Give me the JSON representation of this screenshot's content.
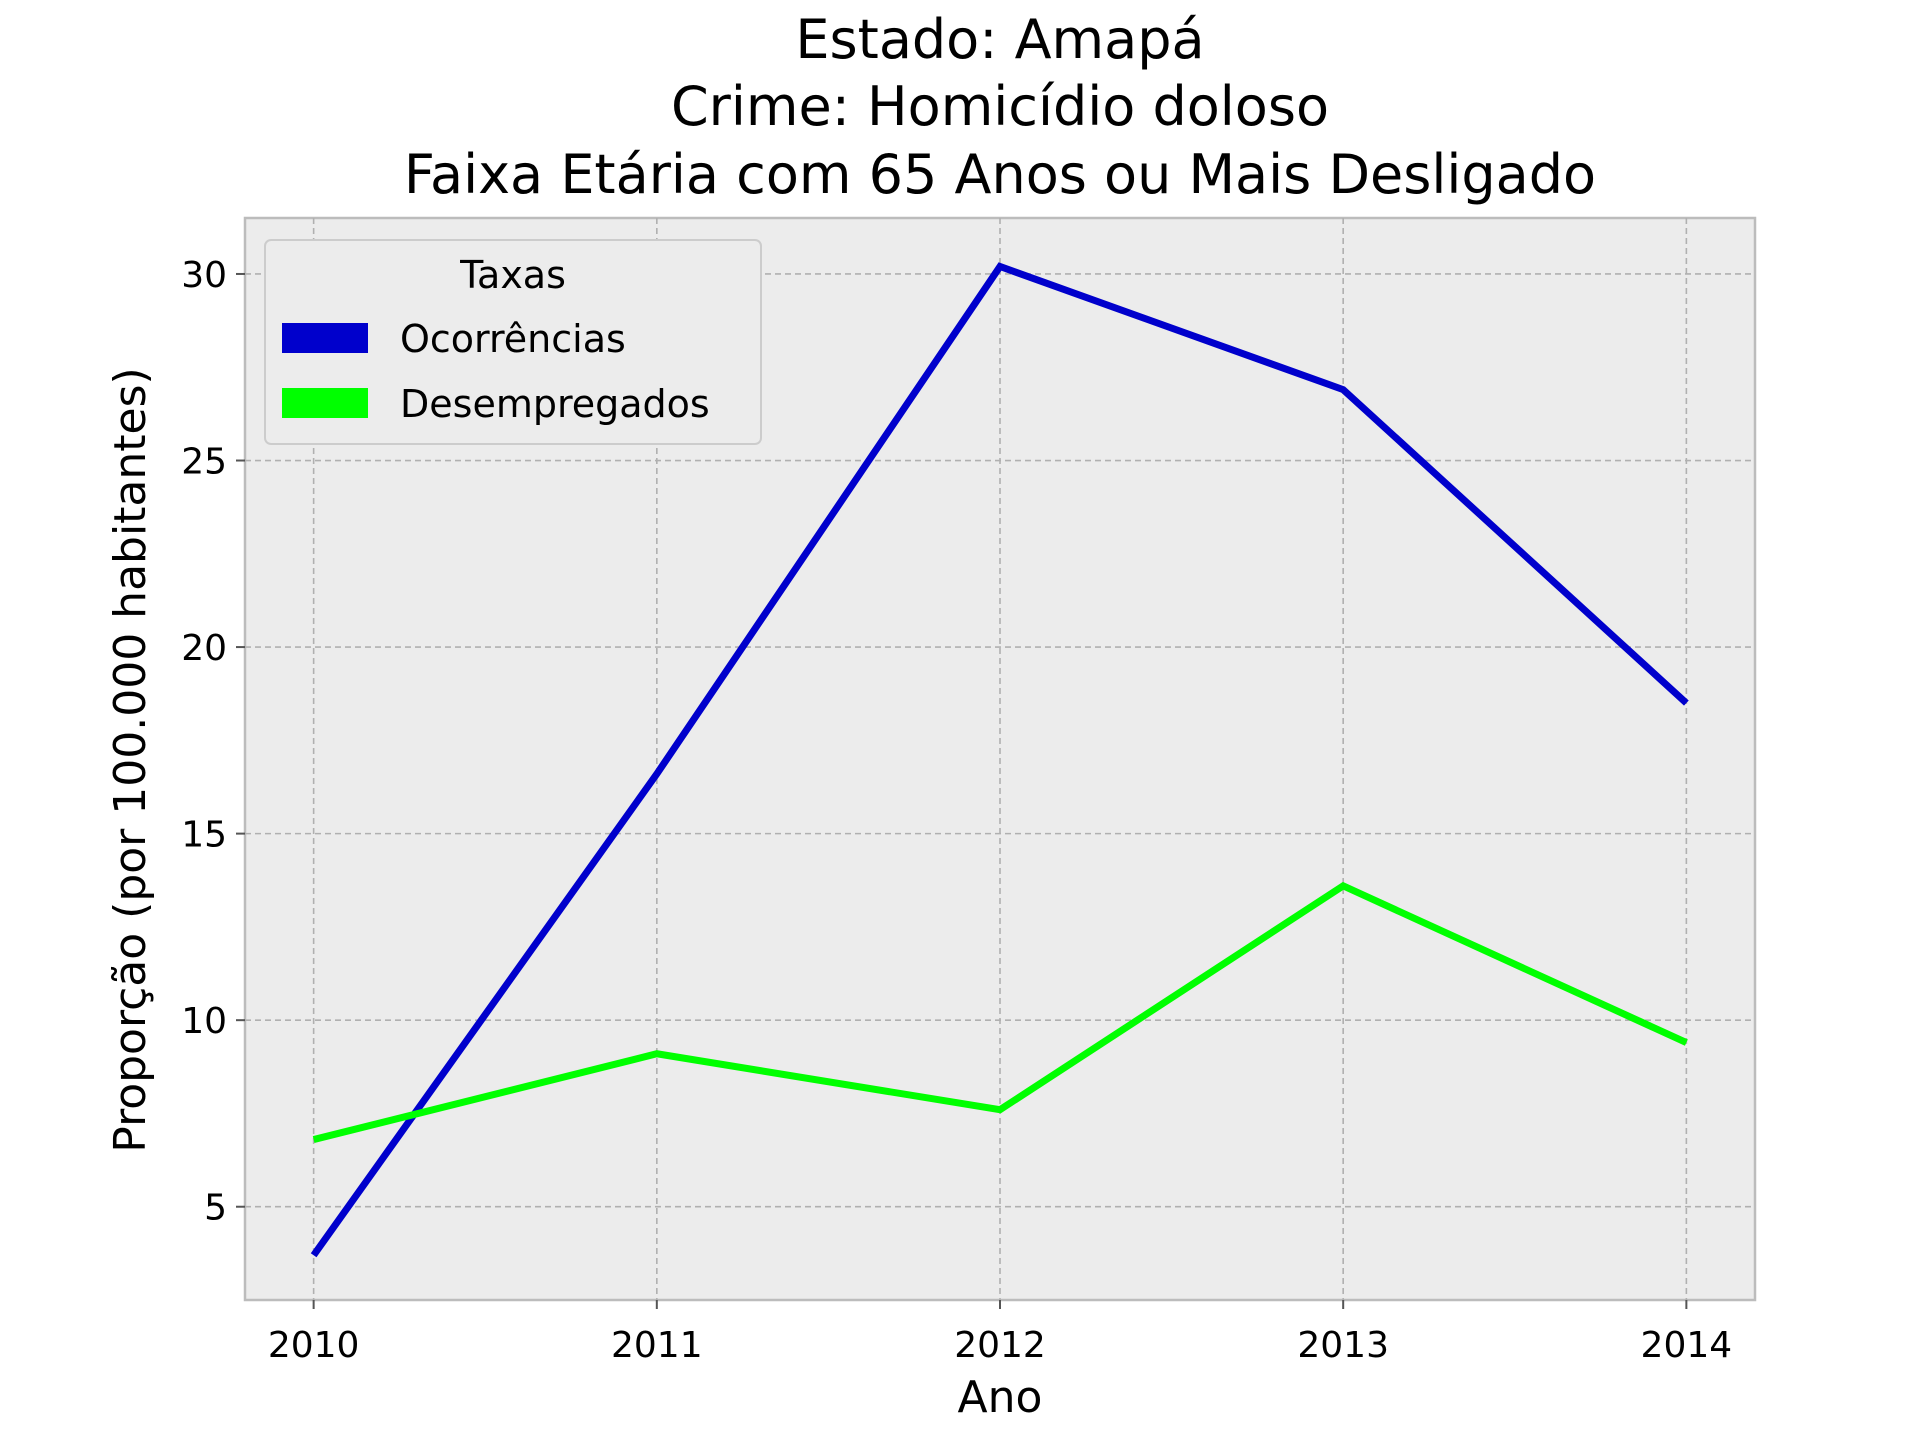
{
  "chart_data": {
    "type": "line",
    "title": [
      "Estado: Amapá",
      "Crime: Homicídio doloso",
      "Faixa Etária com 65 Anos ou Mais   Desligado"
    ],
    "xlabel": "Ano",
    "ylabel": "Proporção (por 100.000 habitantes)",
    "x": [
      2010,
      2011,
      2012,
      2013,
      2014
    ],
    "x_tick_labels": [
      "2010",
      "2011",
      "2012",
      "2013",
      "2014"
    ],
    "y_ticks": [
      5,
      10,
      15,
      20,
      25,
      30
    ],
    "y_tick_labels": [
      "5",
      "10",
      "15",
      "20",
      "25",
      "30"
    ],
    "xlim": [
      2009.8,
      2014.2
    ],
    "ylim": [
      2.5,
      31.5
    ],
    "grid": true,
    "legend": {
      "title": "Taxas",
      "placement": "top-left"
    },
    "series": [
      {
        "name": "Ocorrências",
        "color": "#0000cc",
        "values": [
          3.7,
          16.6,
          30.2,
          26.9,
          18.5
        ]
      },
      {
        "name": "Desempregados",
        "color": "#00ff00",
        "values": [
          6.8,
          9.1,
          7.6,
          13.6,
          9.4
        ]
      }
    ]
  }
}
